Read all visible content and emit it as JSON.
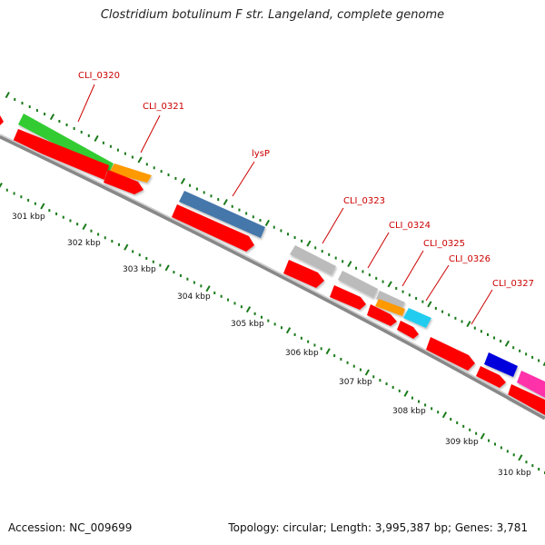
{
  "title": "Clostridium botulinum F str. Langeland, complete genome",
  "accession": "Accession: NC_009699",
  "summary": "Topology: circular; Length: 3,995,387 bp; Genes: 3,781",
  "colors": {
    "backbone": "#777777",
    "cds": "#ff0000",
    "tick": "#1a7a1a",
    "label": "#cc0000",
    "scale": "#1a7a1a"
  },
  "scale_labels": [
    "301 kbp",
    "302 kbp",
    "303 kbp",
    "304 kbp",
    "305 kbp",
    "306 kbp",
    "307 kbp",
    "308 kbp",
    "309 kbp",
    "310 kbp"
  ],
  "genes": [
    {
      "label": "CLI_0320",
      "color": "#33cc33"
    },
    {
      "label": "CLI_0321",
      "color": "#ff9900"
    },
    {
      "label": "lysP",
      "color": "#4477aa"
    },
    {
      "label": "CLI_0323",
      "color": "#bbbbbb"
    },
    {
      "label": "CLI_0324",
      "color": "#bbbbbb"
    },
    {
      "label": "CLI_0325",
      "color": "#ff9900"
    },
    {
      "label": "CLI_0326",
      "color": "#22ccee"
    },
    {
      "label": "CLI_0327",
      "color": ""
    },
    {
      "label": "",
      "color": "#0000dd"
    },
    {
      "label": "",
      "color": "#ff33aa"
    }
  ]
}
